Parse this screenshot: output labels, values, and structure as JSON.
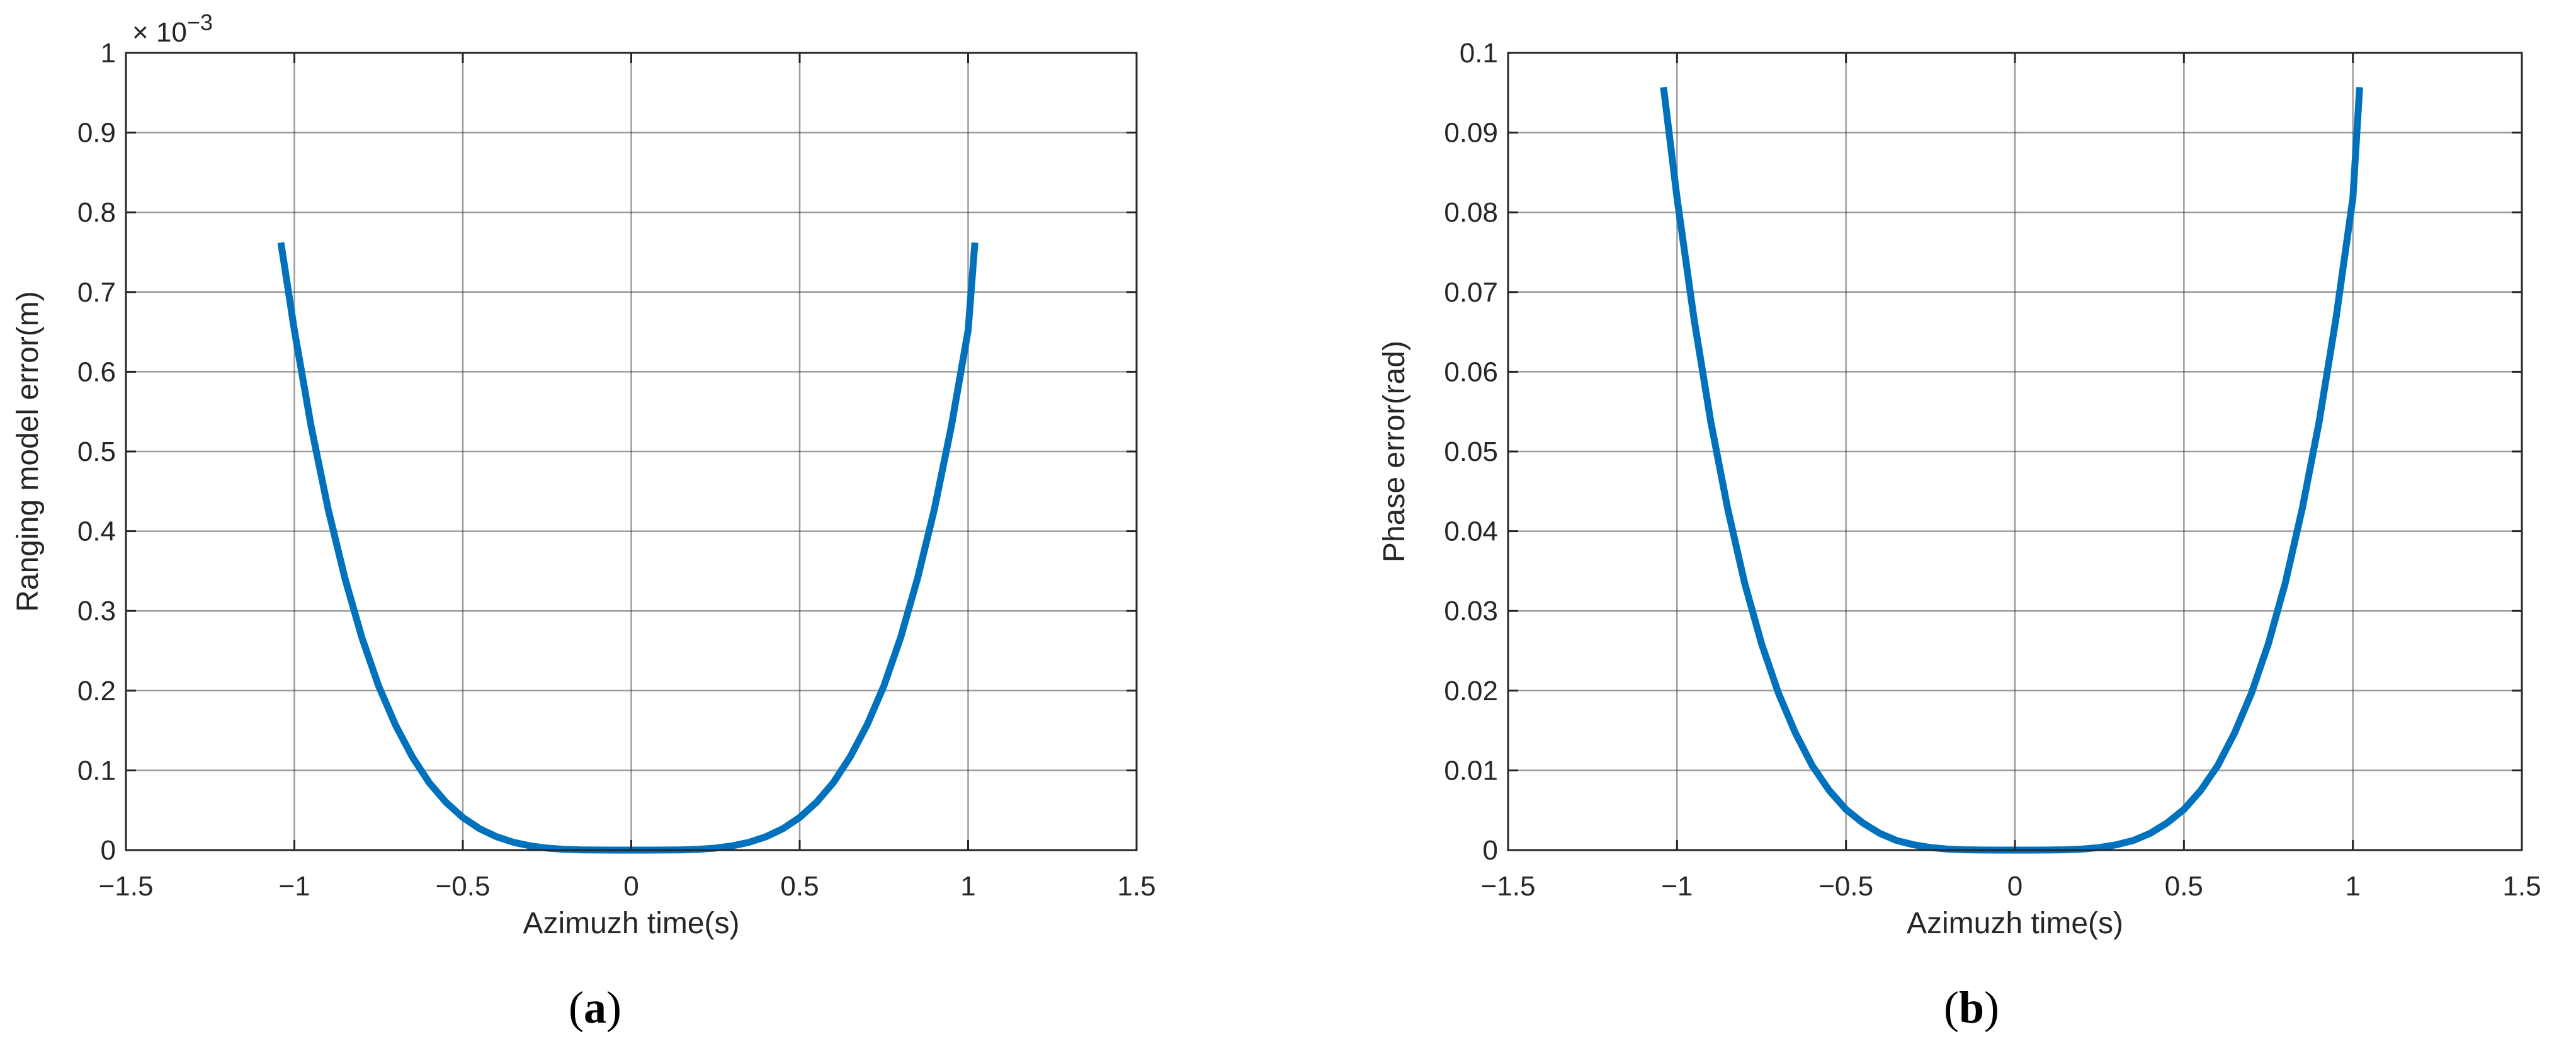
{
  "chart_data": [
    {
      "type": "line",
      "panel_label": {
        "open": "(",
        "letter": "a",
        "close": ")"
      },
      "xlabel": "Azimuzh time(s)",
      "ylabel": "Ranging model error(m)",
      "xlim": [
        -1.5,
        1.5
      ],
      "ylim": [
        0,
        0.001
      ],
      "grid": true,
      "y_exponent_label": {
        "base": "× 10",
        "exponent": "−3"
      },
      "x_ticks": [
        -1.5,
        -1,
        -0.5,
        0,
        0.5,
        1,
        1.5
      ],
      "x_tick_labels": [
        "−1.5",
        "−1",
        "−0.5",
        "0",
        "0.5",
        "1",
        "1.5"
      ],
      "y_ticks": [
        0,
        0.0001,
        0.0002,
        0.0003,
        0.0004,
        0.0005,
        0.0006,
        0.0007,
        0.0008,
        0.0009,
        0.001
      ],
      "y_tick_labels": [
        "0",
        "0.1",
        "0.2",
        "0.3",
        "0.4",
        "0.5",
        "0.6",
        "0.7",
        "0.8",
        "0.9",
        "1"
      ],
      "series": [
        {
          "color": "#0072BD",
          "x": [
            -1.04,
            -1.0,
            -0.95,
            -0.9,
            -0.85,
            -0.8,
            -0.75,
            -0.7,
            -0.65,
            -0.6,
            -0.55,
            -0.5,
            -0.45,
            -0.4,
            -0.35,
            -0.3,
            -0.25,
            -0.2,
            -0.15,
            -0.1,
            -0.05,
            0,
            0.05,
            0.1,
            0.15,
            0.2,
            0.25,
            0.3,
            0.35,
            0.4,
            0.45,
            0.5,
            0.55,
            0.6,
            0.65,
            0.7,
            0.75,
            0.8,
            0.85,
            0.9,
            0.95,
            1.0,
            1.02
          ],
          "y": [
            0.000762,
            0.000652,
            0.000531,
            0.000428,
            0.000341,
            0.000267,
            0.000206,
            0.000157,
            0.000117,
            8.47e-05,
            6e-05,
            4.09e-05,
            2.68e-05,
            1.68e-05,
            9.8e-06,
            5.3e-06,
            2.5e-06,
            1e-06,
            3e-07,
            1e-07,
            0,
            0,
            0,
            1e-07,
            3e-07,
            1e-06,
            2.5e-06,
            5.3e-06,
            9.8e-06,
            1.68e-05,
            2.68e-05,
            4.09e-05,
            6e-05,
            8.47e-05,
            0.000117,
            0.000157,
            0.000206,
            0.000267,
            0.000341,
            0.000428,
            0.000531,
            0.000652,
            0.000762
          ]
        }
      ]
    },
    {
      "type": "line",
      "panel_label": {
        "open": "(",
        "letter": "b",
        "close": ")"
      },
      "xlabel": "Azimuzh time(s)",
      "ylabel": "Phase error(rad)",
      "xlim": [
        -1.5,
        1.5
      ],
      "ylim": [
        0,
        0.1
      ],
      "grid": true,
      "x_ticks": [
        -1.5,
        -1,
        -0.5,
        0,
        0.5,
        1,
        1.5
      ],
      "x_tick_labels": [
        "−1.5",
        "−1",
        "−0.5",
        "0",
        "0.5",
        "1",
        "1.5"
      ],
      "y_ticks": [
        0,
        0.01,
        0.02,
        0.03,
        0.04,
        0.05,
        0.06,
        0.07,
        0.08,
        0.09,
        0.1
      ],
      "y_tick_labels": [
        "0",
        "0.01",
        "0.02",
        "0.03",
        "0.04",
        "0.05",
        "0.06",
        "0.07",
        "0.08",
        "0.09",
        "0.1"
      ],
      "series": [
        {
          "color": "#0072BD",
          "x": [
            -1.04,
            -1.0,
            -0.95,
            -0.9,
            -0.85,
            -0.8,
            -0.75,
            -0.7,
            -0.65,
            -0.6,
            -0.55,
            -0.5,
            -0.45,
            -0.4,
            -0.35,
            -0.3,
            -0.25,
            -0.2,
            -0.15,
            -0.1,
            -0.05,
            0,
            0.05,
            0.1,
            0.15,
            0.2,
            0.25,
            0.3,
            0.35,
            0.4,
            0.45,
            0.5,
            0.55,
            0.6,
            0.65,
            0.7,
            0.75,
            0.8,
            0.85,
            0.9,
            0.95,
            1.0,
            1.02
          ],
          "y": [
            0.0957,
            0.0818,
            0.0667,
            0.0537,
            0.0428,
            0.0335,
            0.0259,
            0.0197,
            0.0147,
            0.0106,
            0.0075,
            0.0051,
            0.0034,
            0.0021,
            0.0012,
            0.00067,
            0.00032,
            0.00013,
            4e-05,
            1e-05,
            0,
            0,
            0,
            1e-05,
            4e-05,
            0.00013,
            0.00032,
            0.00067,
            0.0012,
            0.0021,
            0.0034,
            0.0051,
            0.0075,
            0.0106,
            0.0147,
            0.0197,
            0.0259,
            0.0335,
            0.0428,
            0.0537,
            0.0667,
            0.0818,
            0.0957
          ]
        }
      ]
    }
  ]
}
